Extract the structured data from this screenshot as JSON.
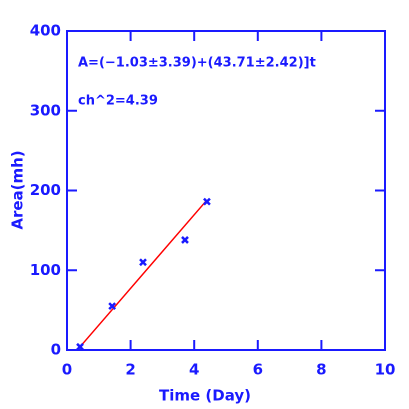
{
  "chart_data": {
    "type": "scatter",
    "xlabel": "Time (Day)",
    "ylabel": "Area(mh)",
    "annotations": [
      "A=(−1.03±3.39)+(43.71±2.42)]t",
      "ch^2=4.39"
    ],
    "xlim": [
      0,
      10
    ],
    "ylim": [
      0,
      400
    ],
    "xticks": [
      0,
      2,
      4,
      6,
      8,
      10
    ],
    "yticks": [
      0,
      100,
      200,
      300,
      400
    ],
    "axis_color": "#1a1aff",
    "series": [
      {
        "kind": "points",
        "color": "#1a1aff",
        "x": [
          0.41,
          1.42,
          2.39,
          3.71,
          4.4
        ],
        "values": [
          4,
          55,
          110,
          138,
          186
        ]
      },
      {
        "kind": "line",
        "color": "#ff0000",
        "x": [
          0.41,
          4.4
        ],
        "values": [
          4,
          188
        ]
      }
    ]
  }
}
